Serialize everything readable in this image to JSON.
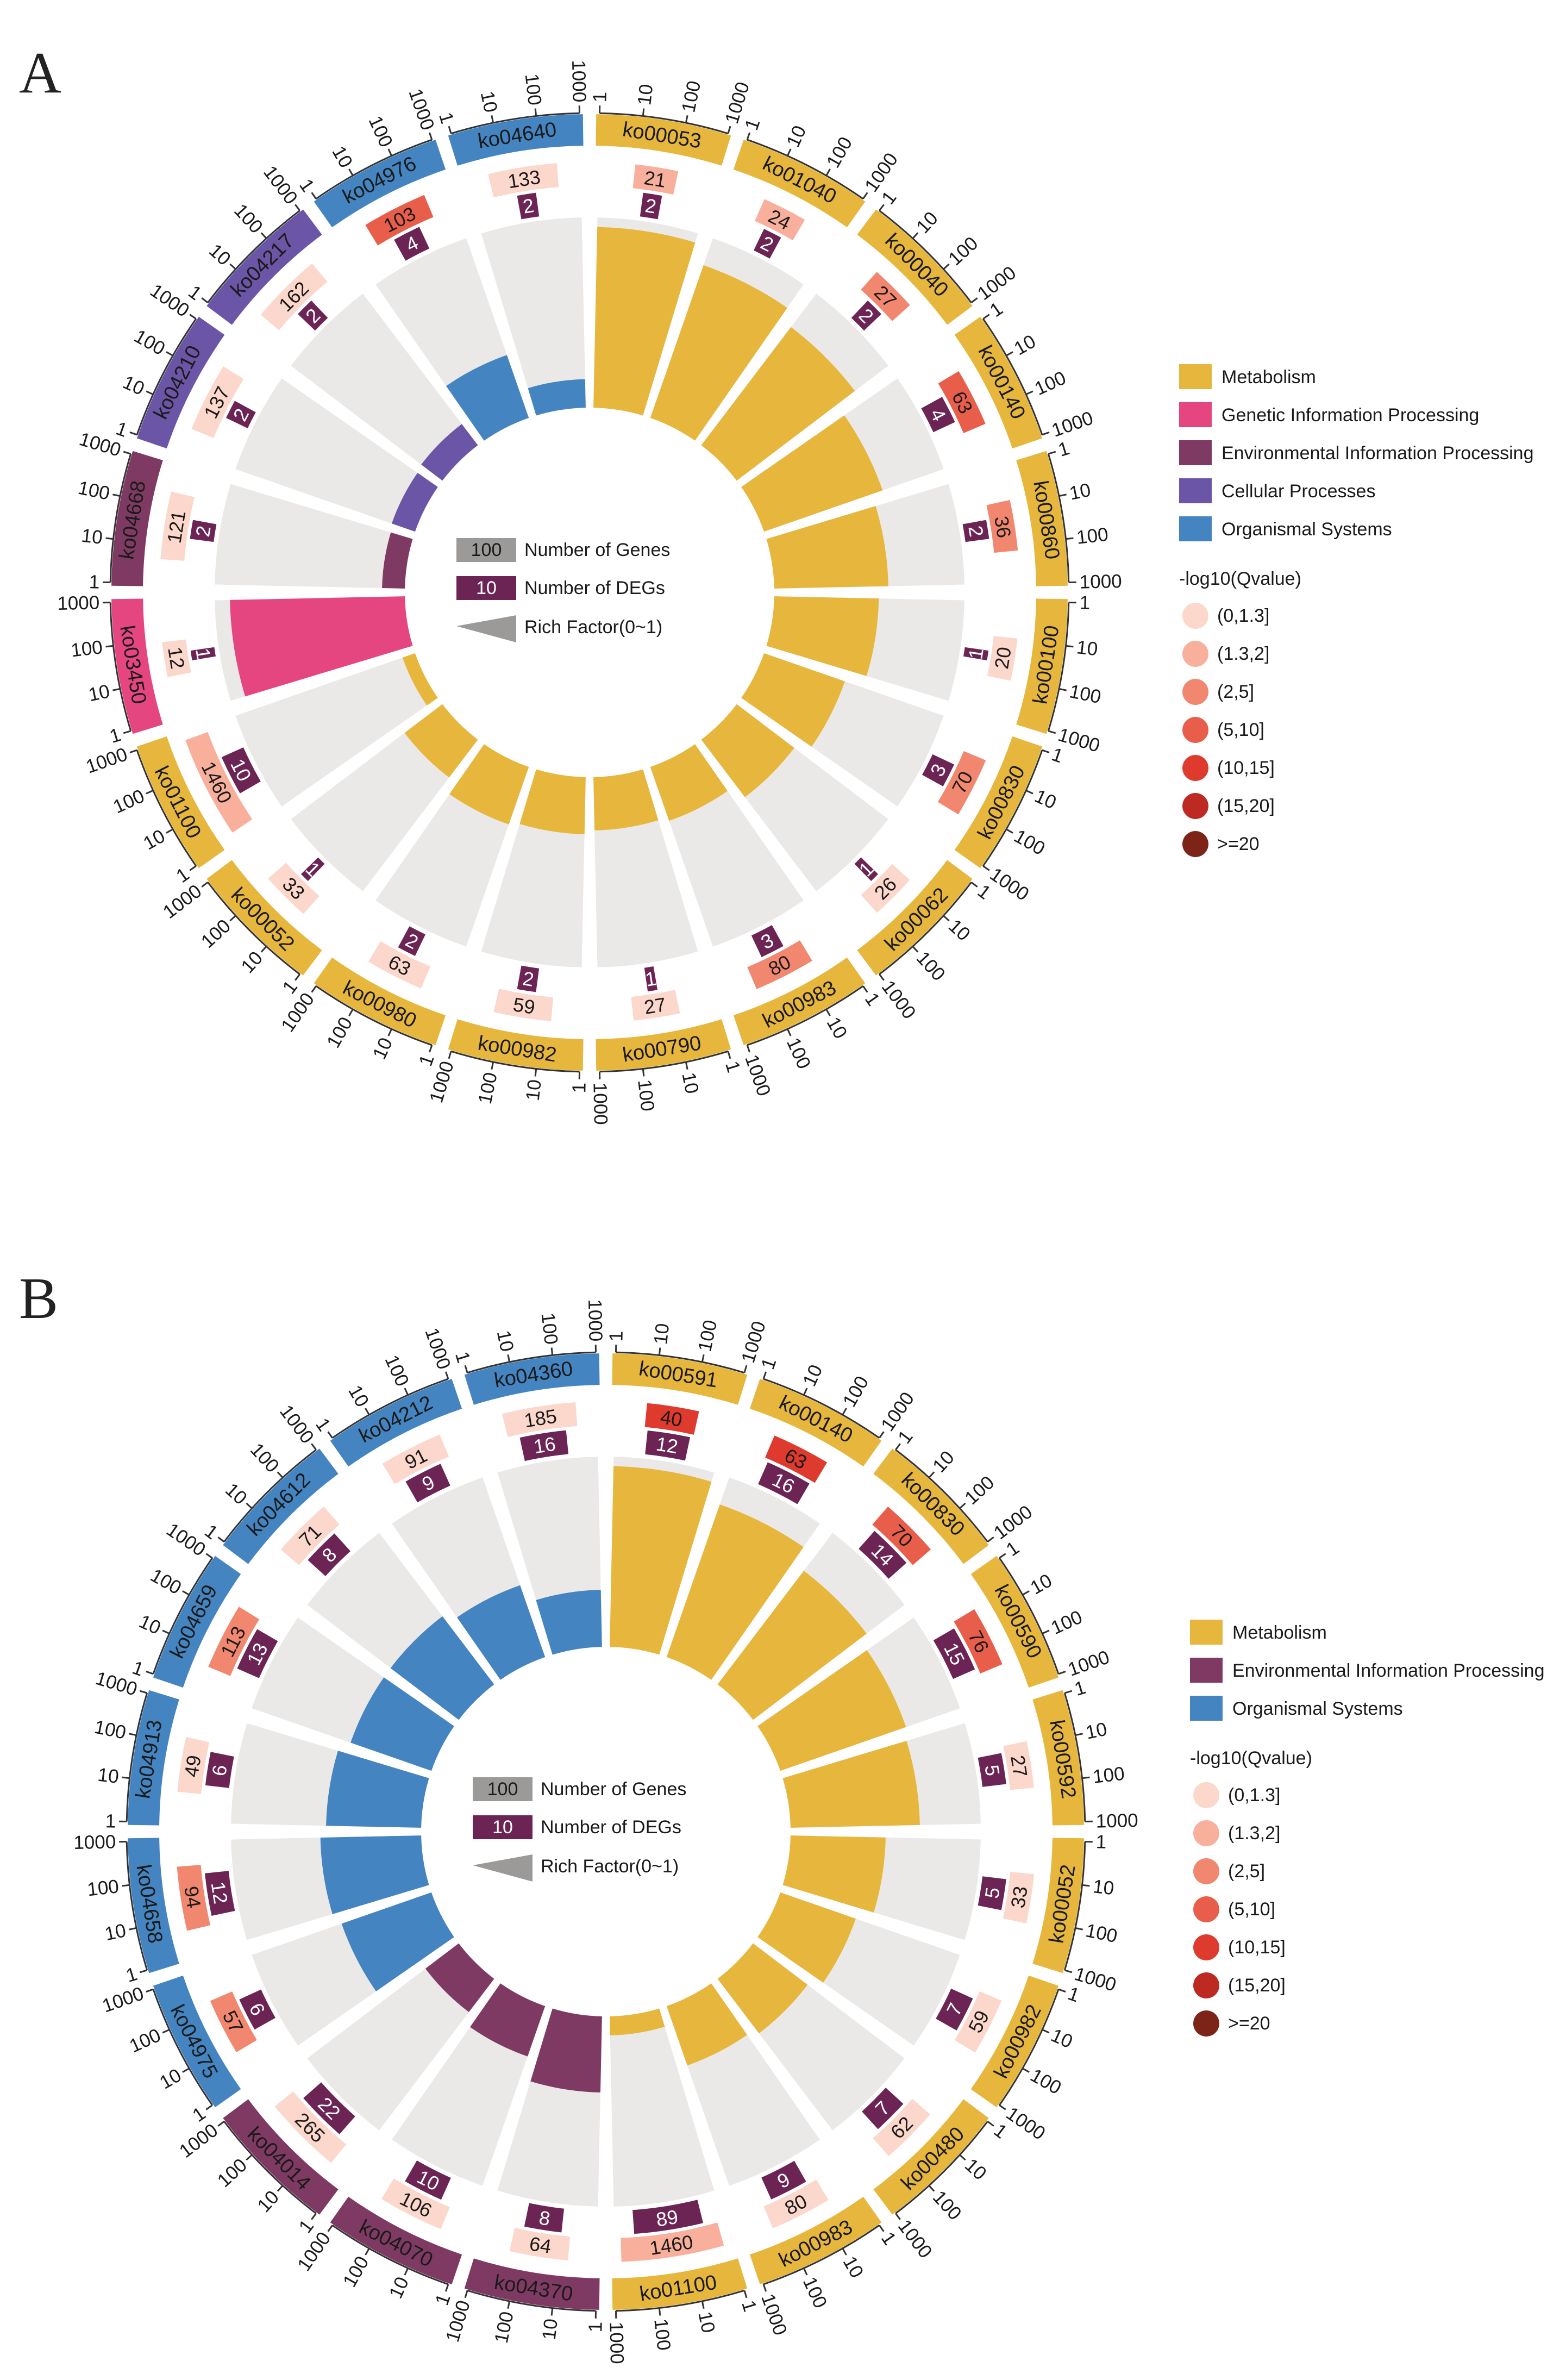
{
  "figure": {
    "labels": [
      "A",
      "B"
    ]
  },
  "chart_data": [
    {
      "type": "circular-bar",
      "panel": "A",
      "ring_tick_labels": [
        "1",
        "10",
        "100",
        "1000"
      ],
      "center_legend": {
        "genes_value": "100",
        "genes_label": "Number of Genes",
        "degs_value": "10",
        "degs_label": "Number of DEGs",
        "rich_label": "Rich Factor(0~1)"
      },
      "category_legend": [
        "Metabolism",
        "Genetic Information Processing",
        "Environmental Information Processing",
        "Cellular Processes",
        "Organismal Systems"
      ],
      "qvalue_legend": {
        "title": "-log10(Qvalue)",
        "labels": [
          "(0,1.3]",
          "(1.3,2]",
          "(2,5]",
          "(5,10]",
          "(10,15]",
          "(15,20]",
          ">=20"
        ]
      },
      "terms": [
        {
          "id": "ko00053",
          "category": "Metabolism",
          "genes": 21,
          "degs": 2,
          "q_bin": 1,
          "rich": 0.95
        },
        {
          "id": "ko01040",
          "category": "Metabolism",
          "genes": 24,
          "degs": 2,
          "q_bin": 1,
          "rich": 0.85
        },
        {
          "id": "ko00040",
          "category": "Metabolism",
          "genes": 27,
          "degs": 2,
          "q_bin": 2,
          "rich": 0.78
        },
        {
          "id": "ko00140",
          "category": "Metabolism",
          "genes": 63,
          "degs": 4,
          "q_bin": 3,
          "rich": 0.66
        },
        {
          "id": "ko00860",
          "category": "Metabolism",
          "genes": 36,
          "degs": 2,
          "q_bin": 2,
          "rich": 0.6
        },
        {
          "id": "ko00100",
          "category": "Metabolism",
          "genes": 20,
          "degs": 1,
          "q_bin": 0,
          "rich": 0.55
        },
        {
          "id": "ko00830",
          "category": "Metabolism",
          "genes": 70,
          "degs": 3,
          "q_bin": 2,
          "rich": 0.45
        },
        {
          "id": "ko00062",
          "category": "Metabolism",
          "genes": 26,
          "degs": 1,
          "q_bin": 0,
          "rich": 0.38
        },
        {
          "id": "ko00983",
          "category": "Metabolism",
          "genes": 80,
          "degs": 3,
          "q_bin": 2,
          "rich": 0.3
        },
        {
          "id": "ko00790",
          "category": "Metabolism",
          "genes": 27,
          "degs": 1,
          "q_bin": 0,
          "rich": 0.28
        },
        {
          "id": "ko00982",
          "category": "Metabolism",
          "genes": 59,
          "degs": 2,
          "q_bin": 0,
          "rich": 0.3
        },
        {
          "id": "ko00980",
          "category": "Metabolism",
          "genes": 63,
          "degs": 2,
          "q_bin": 0,
          "rich": 0.32
        },
        {
          "id": "ko00052",
          "category": "Metabolism",
          "genes": 33,
          "degs": 1,
          "q_bin": 0,
          "rich": 0.25
        },
        {
          "id": "ko01100",
          "category": "Metabolism",
          "genes": 1460,
          "degs": 10,
          "q_bin": 1,
          "rich": 0.07
        },
        {
          "id": "ko03450",
          "category": "Genetic Information Processing",
          "genes": 12,
          "degs": 1,
          "q_bin": 0,
          "rich": 0.92
        },
        {
          "id": "ko04668",
          "category": "Environmental Information Processing",
          "genes": 121,
          "degs": 2,
          "q_bin": 0,
          "rich": 0.12
        },
        {
          "id": "ko04210",
          "category": "Cellular Processes",
          "genes": 137,
          "degs": 2,
          "q_bin": 0,
          "rich": 0.13
        },
        {
          "id": "ko04217",
          "category": "Cellular Processes",
          "genes": 162,
          "degs": 2,
          "q_bin": 0,
          "rich": 0.14
        },
        {
          "id": "ko04976",
          "category": "Organismal Systems",
          "genes": 103,
          "degs": 4,
          "q_bin": 3,
          "rich": 0.35
        },
        {
          "id": "ko04640",
          "category": "Organismal Systems",
          "genes": 133,
          "degs": 2,
          "q_bin": 0,
          "rich": 0.15
        }
      ]
    },
    {
      "type": "circular-bar",
      "panel": "B",
      "ring_tick_labels": [
        "1",
        "10",
        "100",
        "1000"
      ],
      "center_legend": {
        "genes_value": "100",
        "genes_label": "Number of Genes",
        "degs_value": "10",
        "degs_label": "Number of DEGs",
        "rich_label": "Rich Factor(0~1)"
      },
      "category_legend": [
        "Metabolism",
        "Environmental Information Processing",
        "Organismal Systems"
      ],
      "qvalue_legend": {
        "title": "-log10(Qvalue)",
        "labels": [
          "(0,1.3]",
          "(1.3,2]",
          "(2,5]",
          "(5,10]",
          "(10,15]",
          "(15,20]",
          ">=20"
        ]
      },
      "terms": [
        {
          "id": "ko00591",
          "category": "Metabolism",
          "genes": 40,
          "degs": 12,
          "q_bin": 4,
          "rich": 0.95
        },
        {
          "id": "ko00140",
          "category": "Metabolism",
          "genes": 63,
          "degs": 16,
          "q_bin": 4,
          "rich": 0.85
        },
        {
          "id": "ko00830",
          "category": "Metabolism",
          "genes": 70,
          "degs": 14,
          "q_bin": 3,
          "rich": 0.75
        },
        {
          "id": "ko00590",
          "category": "Metabolism",
          "genes": 76,
          "degs": 15,
          "q_bin": 3,
          "rich": 0.7
        },
        {
          "id": "ko00592",
          "category": "Metabolism",
          "genes": 27,
          "degs": 5,
          "q_bin": 0,
          "rich": 0.68
        },
        {
          "id": "ko00052",
          "category": "Metabolism",
          "genes": 33,
          "degs": 5,
          "q_bin": 0,
          "rich": 0.5
        },
        {
          "id": "ko00982",
          "category": "Metabolism",
          "genes": 59,
          "degs": 7,
          "q_bin": 0,
          "rich": 0.42
        },
        {
          "id": "ko00480",
          "category": "Metabolism",
          "genes": 62,
          "degs": 7,
          "q_bin": 0,
          "rich": 0.36
        },
        {
          "id": "ko00983",
          "category": "Metabolism",
          "genes": 80,
          "degs": 9,
          "q_bin": 0,
          "rich": 0.33
        },
        {
          "id": "ko01100",
          "category": "Metabolism",
          "genes": 1460,
          "degs": 89,
          "q_bin": 1,
          "rich": 0.1
        },
        {
          "id": "ko04370",
          "category": "Environmental Information Processing",
          "genes": 64,
          "degs": 8,
          "q_bin": 0,
          "rich": 0.4
        },
        {
          "id": "ko04070",
          "category": "Environmental Information Processing",
          "genes": 106,
          "degs": 10,
          "q_bin": 0,
          "rich": 0.28
        },
        {
          "id": "ko04014",
          "category": "Environmental Information Processing",
          "genes": 265,
          "degs": 22,
          "q_bin": 0,
          "rich": 0.22
        },
        {
          "id": "ko04975",
          "category": "Organismal Systems",
          "genes": 57,
          "degs": 6,
          "q_bin": 2,
          "rich": 0.5
        },
        {
          "id": "ko04658",
          "category": "Organismal Systems",
          "genes": 94,
          "degs": 12,
          "q_bin": 2,
          "rich": 0.53
        },
        {
          "id": "ko04913",
          "category": "Organismal Systems",
          "genes": 49,
          "degs": 6,
          "q_bin": 0,
          "rich": 0.5
        },
        {
          "id": "ko04659",
          "category": "Organismal Systems",
          "genes": 113,
          "degs": 13,
          "q_bin": 2,
          "rich": 0.45
        },
        {
          "id": "ko04612",
          "category": "Organismal Systems",
          "genes": 71,
          "degs": 8,
          "q_bin": 0,
          "rich": 0.45
        },
        {
          "id": "ko04212",
          "category": "Organismal Systems",
          "genes": 91,
          "degs": 9,
          "q_bin": 0,
          "rich": 0.4
        },
        {
          "id": "ko04360",
          "category": "Organismal Systems",
          "genes": 185,
          "degs": 16,
          "q_bin": 0,
          "rich": 0.3
        }
      ]
    }
  ],
  "colors": {
    "Metabolism": "#e6b63d",
    "Genetic Information Processing": "#e5467f",
    "Environmental Information Processing": "#7f3a63",
    "Cellular Processes": "#6b55a6",
    "Organismal Systems": "#4384c1",
    "degs": "#6b2454",
    "ring_bg": "#ebe9e7",
    "q_scale": [
      "#fcd7cb",
      "#f8b09c",
      "#f2876f",
      "#e95e4b",
      "#de3a2e",
      "#bc2a22",
      "#7d2418"
    ]
  }
}
